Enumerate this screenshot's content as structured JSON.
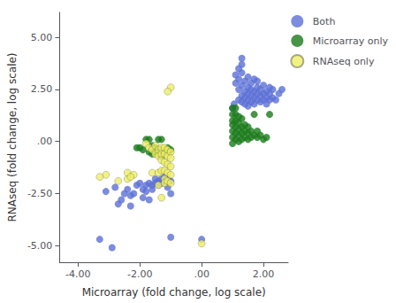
{
  "chart_data": {
    "type": "scatter",
    "xlabel": "Microarray (fold change, log scale)",
    "ylabel": "RNAseq (fold change, log scale)",
    "xlim": [
      -4.6,
      2.8
    ],
    "ylim": [
      -5.8,
      6.2
    ],
    "xticks": [
      {
        "value": -4.0,
        "label": "-4.00"
      },
      {
        "value": -2.0,
        "label": "-2.00"
      },
      {
        "value": 0.0,
        "label": ".00"
      },
      {
        "value": 2.0,
        "label": "2.00"
      }
    ],
    "yticks": [
      {
        "value": -5.0,
        "label": "-5.00"
      },
      {
        "value": -2.5,
        "label": "-2.50"
      },
      {
        "value": 0.0,
        "label": ".00"
      },
      {
        "value": 2.5,
        "label": "2.50"
      },
      {
        "value": 5.0,
        "label": "5.00"
      }
    ],
    "grid": false,
    "legend": "upper right",
    "series": [
      {
        "name": "Both",
        "color": "#5B6FD6",
        "values": [
          [
            -3.3,
            -4.7
          ],
          [
            -3.1,
            -2.4
          ],
          [
            -2.9,
            -5.1
          ],
          [
            -2.8,
            -2.2
          ],
          [
            -2.7,
            -3.0
          ],
          [
            -2.6,
            -2.8
          ],
          [
            -2.5,
            -2.5
          ],
          [
            -2.4,
            -2.3
          ],
          [
            -2.3,
            -2.6
          ],
          [
            -2.3,
            -3.1
          ],
          [
            -2.2,
            -2.5
          ],
          [
            -2.1,
            -2.1
          ],
          [
            -2.0,
            -2.0
          ],
          [
            -1.9,
            -2.3
          ],
          [
            -1.9,
            -2.7
          ],
          [
            -1.8,
            -2.1
          ],
          [
            -1.8,
            -2.4
          ],
          [
            -1.7,
            -2.0
          ],
          [
            -1.7,
            -2.8
          ],
          [
            -1.6,
            -2.1
          ],
          [
            -1.6,
            -2.3
          ],
          [
            -1.5,
            -1.8
          ],
          [
            -1.5,
            -2.0
          ],
          [
            -1.4,
            -1.9
          ],
          [
            -1.4,
            -2.1
          ],
          [
            -1.3,
            -1.8
          ],
          [
            -1.3,
            -2.0
          ],
          [
            -1.2,
            -1.7
          ],
          [
            -1.2,
            -1.9
          ],
          [
            -1.1,
            -1.8
          ],
          [
            -1.1,
            -2.2
          ],
          [
            -1.0,
            -4.6
          ],
          [
            -1.0,
            -1.9
          ],
          [
            -1.0,
            -2.5
          ],
          [
            0.0,
            -4.7
          ],
          [
            1.0,
            1.6
          ],
          [
            1.05,
            1.8
          ],
          [
            1.1,
            2.8
          ],
          [
            1.1,
            3.2
          ],
          [
            1.2,
            2.0
          ],
          [
            1.2,
            2.5
          ],
          [
            1.2,
            3.0
          ],
          [
            1.2,
            3.5
          ],
          [
            1.3,
            1.9
          ],
          [
            1.3,
            2.2
          ],
          [
            1.3,
            2.7
          ],
          [
            1.3,
            3.3
          ],
          [
            1.3,
            3.7
          ],
          [
            1.3,
            4.0
          ],
          [
            1.4,
            1.8
          ],
          [
            1.4,
            2.1
          ],
          [
            1.4,
            2.4
          ],
          [
            1.4,
            2.9
          ],
          [
            1.5,
            1.7
          ],
          [
            1.5,
            2.0
          ],
          [
            1.5,
            2.3
          ],
          [
            1.5,
            2.6
          ],
          [
            1.5,
            3.1
          ],
          [
            1.6,
            1.9
          ],
          [
            1.6,
            2.2
          ],
          [
            1.6,
            2.5
          ],
          [
            1.6,
            2.8
          ],
          [
            1.7,
            1.8
          ],
          [
            1.7,
            2.1
          ],
          [
            1.7,
            2.4
          ],
          [
            1.7,
            3.0
          ],
          [
            1.8,
            2.0
          ],
          [
            1.8,
            2.3
          ],
          [
            1.8,
            2.6
          ],
          [
            1.8,
            2.9
          ],
          [
            1.9,
            1.9
          ],
          [
            1.9,
            2.2
          ],
          [
            1.9,
            2.5
          ],
          [
            2.0,
            2.0
          ],
          [
            2.0,
            2.3
          ],
          [
            2.0,
            2.7
          ],
          [
            2.1,
            1.8
          ],
          [
            2.1,
            2.1
          ],
          [
            2.1,
            2.4
          ],
          [
            2.2,
            2.0
          ],
          [
            2.2,
            2.3
          ],
          [
            2.2,
            2.6
          ],
          [
            2.3,
            2.1
          ],
          [
            2.3,
            2.5
          ],
          [
            2.4,
            2.0
          ],
          [
            2.5,
            2.3
          ],
          [
            2.6,
            2.5
          ]
        ]
      },
      {
        "name": "Microarray only",
        "color": "#1A7A1A",
        "values": [
          [
            -2.1,
            -0.3
          ],
          [
            -2.0,
            -0.3
          ],
          [
            -1.9,
            -0.4
          ],
          [
            -1.8,
            0.1
          ],
          [
            -1.7,
            0.1
          ],
          [
            -1.7,
            -0.5
          ],
          [
            -1.6,
            -0.2
          ],
          [
            -1.6,
            -0.6
          ],
          [
            -1.5,
            -0.3
          ],
          [
            -1.5,
            -0.5
          ],
          [
            -1.4,
            -0.4
          ],
          [
            -1.4,
            -0.6
          ],
          [
            -1.3,
            -0.4
          ],
          [
            -1.3,
            -0.7
          ],
          [
            -1.2,
            -0.5
          ],
          [
            -1.1,
            -0.3
          ],
          [
            -1.1,
            -0.5
          ],
          [
            -1.0,
            -0.4
          ],
          [
            -1.4,
            0.1
          ],
          [
            -1.3,
            0.1
          ],
          [
            1.0,
            -0.1
          ],
          [
            1.0,
            0.2
          ],
          [
            1.0,
            0.5
          ],
          [
            1.0,
            0.8
          ],
          [
            1.0,
            1.0
          ],
          [
            1.0,
            1.3
          ],
          [
            1.0,
            1.6
          ],
          [
            1.1,
            0.1
          ],
          [
            1.1,
            0.4
          ],
          [
            1.1,
            0.7
          ],
          [
            1.1,
            1.0
          ],
          [
            1.1,
            1.3
          ],
          [
            1.1,
            1.6
          ],
          [
            1.2,
            0.0
          ],
          [
            1.2,
            0.3
          ],
          [
            1.2,
            0.6
          ],
          [
            1.2,
            0.9
          ],
          [
            1.2,
            1.2
          ],
          [
            1.3,
            0.1
          ],
          [
            1.3,
            0.4
          ],
          [
            1.3,
            0.7
          ],
          [
            1.3,
            1.1
          ],
          [
            1.4,
            0.2
          ],
          [
            1.4,
            0.5
          ],
          [
            1.4,
            0.8
          ],
          [
            1.5,
            0.1
          ],
          [
            1.5,
            0.4
          ],
          [
            1.5,
            0.7
          ],
          [
            1.6,
            0.2
          ],
          [
            1.6,
            0.5
          ],
          [
            1.7,
            0.3
          ],
          [
            1.7,
            1.3
          ],
          [
            1.8,
            0.2
          ],
          [
            1.8,
            0.5
          ],
          [
            1.9,
            0.3
          ],
          [
            2.0,
            0.1
          ],
          [
            2.1,
            0.2
          ],
          [
            2.2,
            1.3
          ]
        ]
      },
      {
        "name": "RNAseq only",
        "color": "#EEEE66",
        "values": [
          [
            -1.8,
            -0.1
          ],
          [
            -1.7,
            -0.3
          ],
          [
            -1.6,
            -0.4
          ],
          [
            -1.6,
            -1.5
          ],
          [
            -1.5,
            -0.2
          ],
          [
            -1.5,
            -0.6
          ],
          [
            -1.4,
            -0.4
          ],
          [
            -1.4,
            -0.7
          ],
          [
            -1.4,
            -1.5
          ],
          [
            -1.4,
            -2.1
          ],
          [
            -1.3,
            -0.3
          ],
          [
            -1.3,
            -0.6
          ],
          [
            -1.3,
            -0.9
          ],
          [
            -1.3,
            -1.4
          ],
          [
            -1.3,
            -2.7
          ],
          [
            -1.2,
            -0.3
          ],
          [
            -1.2,
            -0.6
          ],
          [
            -1.2,
            -1.0
          ],
          [
            -1.2,
            -1.4
          ],
          [
            -1.2,
            -1.8
          ],
          [
            -1.2,
            -2.0
          ],
          [
            -1.1,
            -0.4
          ],
          [
            -1.1,
            -0.7
          ],
          [
            -1.1,
            -1.1
          ],
          [
            -1.1,
            -1.5
          ],
          [
            -1.1,
            -1.9
          ],
          [
            -1.0,
            -0.5
          ],
          [
            -1.0,
            -0.8
          ],
          [
            -1.0,
            -1.2
          ],
          [
            -1.0,
            -1.6
          ],
          [
            -1.0,
            -2.0
          ],
          [
            -2.4,
            -1.8
          ],
          [
            -2.4,
            -1.5
          ],
          [
            -2.2,
            -1.6
          ],
          [
            -2.3,
            -1.7
          ],
          [
            -2.7,
            -1.9
          ],
          [
            -3.1,
            -1.6
          ],
          [
            -3.3,
            -1.7
          ],
          [
            -1.0,
            2.6
          ],
          [
            -1.1,
            2.4
          ],
          [
            0.0,
            -4.9
          ]
        ]
      }
    ]
  }
}
